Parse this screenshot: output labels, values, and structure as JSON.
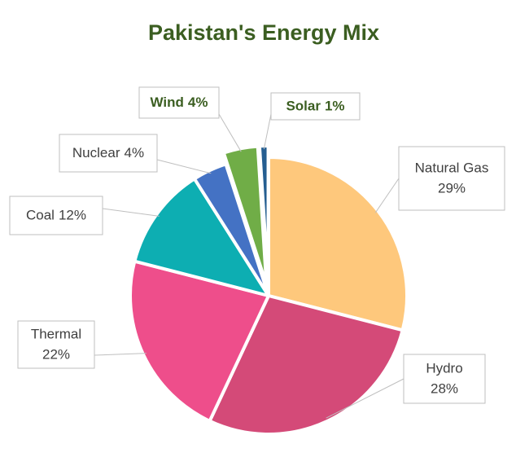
{
  "chart_data": {
    "type": "pie",
    "title": "Pakistan's Energy Mix",
    "categories": [
      "Natural Gas",
      "Hydro",
      "Thermal",
      "Coal",
      "Nuclear",
      "Wind",
      "Solar"
    ],
    "values": [
      29,
      28,
      22,
      12,
      4,
      4,
      1
    ],
    "value_labels": [
      "29%",
      "28%",
      "22%",
      "12%",
      "4%",
      "4%",
      "1%"
    ],
    "colors": [
      "#fec87c",
      "#d44a78",
      "#ee4e8b",
      "#0daeb2",
      "#4472c4",
      "#70ad47",
      "#255e91"
    ]
  }
}
